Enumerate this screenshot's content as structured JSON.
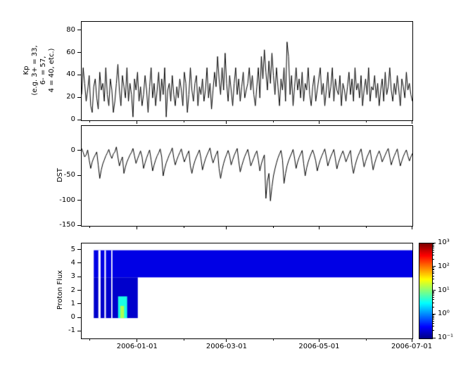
{
  "figure": {
    "background": "#ffffff",
    "line_color": "#000000"
  },
  "time_axis": {
    "range_days": [
      0,
      218
    ],
    "ticks": [
      {
        "day": 37,
        "label": "2006-01-01"
      },
      {
        "day": 96,
        "label": "2006-03-01"
      },
      {
        "day": 157,
        "label": "2006-05-01"
      },
      {
        "day": 218,
        "label": "2006-07-01"
      }
    ],
    "minor_days": [
      6,
      68,
      127,
      188
    ]
  },
  "chart_data": [
    {
      "type": "line",
      "ylabel": "Kp (e.g. 3+ = 33, 6- = 57, 4 = 40, etc.)",
      "ylabel_display": "Kp\n(e.g. 3+ = 33,\n6- = 57,\n4 = 40, etc.)",
      "ylim": [
        0,
        88
      ],
      "yticks": [
        {
          "v": 0,
          "label": "0"
        },
        {
          "v": 20,
          "label": "20"
        },
        {
          "v": 40,
          "label": "40"
        },
        {
          "v": 60,
          "label": "60"
        },
        {
          "v": 80,
          "label": "80"
        }
      ],
      "line_color": "#000000",
      "values": [
        23,
        47,
        33,
        17,
        27,
        40,
        13,
        7,
        30,
        37,
        20,
        10,
        43,
        27,
        33,
        17,
        47,
        23,
        13,
        37,
        27,
        7,
        17,
        33,
        50,
        27,
        13,
        40,
        30,
        20,
        47,
        17,
        33,
        23,
        3,
        37,
        27,
        43,
        17,
        30,
        13,
        23,
        40,
        27,
        7,
        30,
        47,
        20,
        33,
        13,
        27,
        43,
        17,
        37,
        23,
        47,
        3,
        27,
        33,
        17,
        40,
        23,
        13,
        30,
        20,
        37,
        27,
        13,
        43,
        33,
        7,
        23,
        47,
        27,
        17,
        33,
        40,
        13,
        30,
        23,
        37,
        17,
        27,
        47,
        20,
        33,
        10,
        27,
        43,
        30,
        57,
        37,
        23,
        47,
        27,
        60,
        33,
        17,
        40,
        27,
        13,
        33,
        47,
        23,
        37,
        17,
        30,
        43,
        20,
        27,
        33,
        47,
        27,
        40,
        23,
        13,
        30,
        47,
        20,
        57,
        37,
        63,
        43,
        27,
        53,
        33,
        60,
        40,
        23,
        47,
        30,
        13,
        37,
        27,
        47,
        17,
        70,
        57,
        23,
        40,
        13,
        30,
        47,
        27,
        37,
        20,
        43,
        17,
        33,
        27,
        47,
        23,
        13,
        30,
        40,
        17,
        27,
        37,
        47,
        23,
        33,
        13,
        27,
        43,
        20,
        30,
        47,
        17,
        37,
        27,
        23,
        40,
        13,
        33,
        27,
        17,
        30,
        43,
        23,
        37,
        17,
        47,
        27,
        33,
        20,
        40,
        13,
        27,
        37,
        23,
        47,
        17,
        30,
        27,
        40,
        20,
        33,
        13,
        27,
        37,
        17,
        43,
        23,
        30,
        47,
        27,
        17,
        33,
        23,
        40,
        27,
        13,
        37,
        30,
        20,
        43,
        27,
        33,
        23,
        17
      ]
    },
    {
      "type": "line",
      "ylabel": "DST",
      "ylim": [
        -150,
        50
      ],
      "yticks": [
        {
          "v": 0,
          "label": "0"
        },
        {
          "v": -50,
          "label": "-50"
        },
        {
          "v": -100,
          "label": "-100"
        },
        {
          "v": -150,
          "label": "-150"
        }
      ],
      "line_color": "#000000",
      "values": [
        5,
        -3,
        -12,
        -8,
        2,
        -18,
        -35,
        -22,
        -14,
        -8,
        -2,
        -28,
        -55,
        -38,
        -26,
        -18,
        -10,
        -4,
        3,
        -8,
        -15,
        -6,
        -2,
        8,
        -12,
        -30,
        -20,
        -12,
        -45,
        -32,
        -22,
        -15,
        -8,
        -3,
        5,
        -10,
        -25,
        -16,
        -8,
        0,
        -12,
        -35,
        -24,
        -14,
        -6,
        2,
        -18,
        -40,
        -28,
        -18,
        -10,
        -4,
        4,
        -12,
        -50,
        -35,
        -24,
        -16,
        -8,
        -2,
        6,
        -14,
        -28,
        -18,
        -10,
        -3,
        4,
        -10,
        -22,
        -14,
        -6,
        0,
        -30,
        -45,
        -30,
        -20,
        -12,
        -5,
        2,
        -15,
        -38,
        -26,
        -16,
        -8,
        -1,
        6,
        -12,
        -24,
        -15,
        -7,
        0,
        -35,
        -55,
        -38,
        -25,
        -15,
        -7,
        1,
        -10,
        -28,
        -18,
        -9,
        -2,
        5,
        -20,
        -42,
        -30,
        -20,
        -11,
        -4,
        3,
        -12,
        -30,
        -22,
        -14,
        -6,
        0,
        -18,
        -40,
        -26,
        -16,
        -8,
        -95,
        -60,
        -45,
        -100,
        -72,
        -50,
        -36,
        -24,
        -14,
        -6,
        1,
        -18,
        -65,
        -45,
        -30,
        -20,
        -12,
        -5,
        3,
        -15,
        -35,
        -22,
        -13,
        -6,
        1,
        -25,
        -50,
        -34,
        -22,
        -13,
        -5,
        2,
        -8,
        -20,
        -40,
        -28,
        -18,
        -10,
        -3,
        4,
        -12,
        -30,
        -20,
        -11,
        -4,
        3,
        -16,
        -36,
        -24,
        -15,
        -7,
        0,
        -10,
        -22,
        -14,
        -6,
        1,
        -28,
        -45,
        -30,
        -19,
        -10,
        -3,
        4,
        -13,
        -32,
        -21,
        -12,
        -5,
        2,
        -18,
        -38,
        -25,
        -15,
        -7,
        0,
        -9,
        -22,
        -15,
        -8,
        -1,
        5,
        -12,
        -28,
        -18,
        -10,
        -3,
        4,
        -14,
        -30,
        -20,
        -11,
        -4,
        2,
        -10,
        -20,
        -12,
        -5
      ]
    },
    {
      "type": "heatmap",
      "ylabel": "Proton Flux",
      "ylim": [
        -1.5,
        5.5
      ],
      "yticks": [
        {
          "v": 5,
          "label": "5"
        },
        {
          "v": 4,
          "label": "4"
        },
        {
          "v": 3,
          "label": "3"
        },
        {
          "v": 2,
          "label": "2"
        },
        {
          "v": 1,
          "label": "1"
        },
        {
          "v": 0,
          "label": "0"
        },
        {
          "v": -1,
          "label": "-1"
        }
      ],
      "colormap": "jet",
      "scale": "log",
      "flux_range": [
        0.1,
        1000
      ],
      "regions": [
        {
          "t0": 8,
          "t1": 218,
          "y0": 3,
          "y1": 5,
          "flux": 0.25
        },
        {
          "t0": 8,
          "t1": 37,
          "y0": 0,
          "y1": 3,
          "flux": 0.2
        },
        {
          "t0": 11,
          "t1": 12.5,
          "y0": 0,
          "y1": 5,
          "flux": 0
        },
        {
          "t0": 15,
          "t1": 16,
          "y0": 0,
          "y1": 5,
          "flux": 0
        },
        {
          "t0": 19.5,
          "t1": 20.3,
          "y0": 0,
          "y1": 5,
          "flux": 0
        },
        {
          "t0": 24,
          "t1": 30,
          "y0": 0,
          "y1": 1.6,
          "flux": 4
        },
        {
          "t0": 25.5,
          "t1": 28,
          "y0": 0,
          "y1": 0.9,
          "flux": 15
        }
      ],
      "colorbar_ticks": [
        {
          "flux": 1000,
          "label": "10³"
        },
        {
          "flux": 100,
          "label": "10²"
        },
        {
          "flux": 10,
          "label": "10¹"
        },
        {
          "flux": 1,
          "label": "10⁰"
        },
        {
          "flux": 0.1,
          "label": "10⁻¹"
        }
      ]
    }
  ]
}
